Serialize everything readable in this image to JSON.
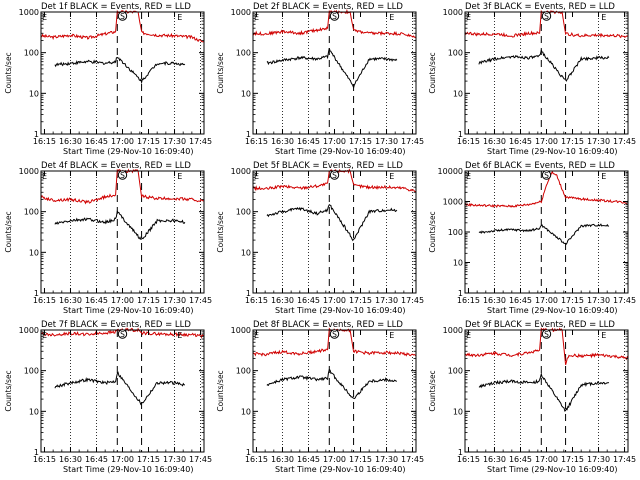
{
  "figure": {
    "common": {
      "xtick_labels": [
        "16:15",
        "16:30",
        "16:45",
        "17:00",
        "17:15",
        "17:30",
        "17:45"
      ],
      "ytick_labels": [
        "1",
        "10",
        "100",
        "1000"
      ],
      "ylabel": "Counts/sec",
      "xlabel": "Start Time (29-Nov-10 16:09:40)",
      "marker_labels": [
        "E",
        "S",
        "E"
      ]
    }
  },
  "chart_data": [
    {
      "type": "line",
      "title": "Det 1f BLACK = Events, RED = LLD",
      "xlabel": "Start Time (29-Nov-10 16:09:40)",
      "ylabel": "Counts/sec",
      "ylim": [
        1,
        1000
      ],
      "xlim": [
        "16:13",
        "17:47"
      ],
      "yscale": "log",
      "grid": "dotted vertical at 16:30, 16:45, 17:30, 17:45",
      "markers": [
        {
          "label": "E",
          "x": "16:13"
        },
        {
          "label": "S",
          "x": "17:00"
        },
        {
          "label": "E",
          "x": "17:31"
        }
      ],
      "dashed_lines": [
        "16:57",
        "17:11"
      ],
      "series": [
        {
          "color": "#d00000",
          "x": [
            "16:13",
            "16:20",
            "16:30",
            "16:40",
            "16:50",
            "16:56",
            "16:57",
            "17:09",
            "17:11",
            "17:20",
            "17:30",
            "17:40",
            "17:47"
          ],
          "values": [
            260,
            240,
            270,
            230,
            290,
            330,
            1000,
            1000,
            310,
            270,
            260,
            240,
            180
          ]
        },
        {
          "color": "#000000",
          "x": [
            "16:21",
            "16:30",
            "16:40",
            "16:50",
            "16:56",
            "16:57",
            "17:11",
            "17:20",
            "17:30",
            "17:36"
          ],
          "values": [
            50,
            55,
            60,
            55,
            60,
            80,
            20,
            55,
            55,
            50
          ]
        }
      ]
    },
    {
      "type": "line",
      "title": "Det 2f BLACK = Events, RED = LLD",
      "xlabel": "Start Time (29-Nov-10 16:09:40)",
      "ylabel": "Counts/sec",
      "ylim": [
        1,
        1000
      ],
      "xlim": [
        "16:13",
        "17:47"
      ],
      "yscale": "log",
      "grid": "dotted vertical at 16:30, 16:45, 17:30, 17:45",
      "markers": [
        {
          "label": "E",
          "x": "16:13"
        },
        {
          "label": "S",
          "x": "17:00"
        },
        {
          "label": "E",
          "x": "17:31"
        }
      ],
      "dashed_lines": [
        "16:57",
        "17:11"
      ],
      "series": [
        {
          "color": "#d00000",
          "x": [
            "16:13",
            "16:20",
            "16:30",
            "16:40",
            "16:50",
            "16:56",
            "16:57",
            "17:09",
            "17:11",
            "17:20",
            "17:30",
            "17:40",
            "17:47"
          ],
          "values": [
            300,
            290,
            330,
            300,
            360,
            400,
            1000,
            1000,
            350,
            300,
            300,
            290,
            230
          ]
        },
        {
          "color": "#000000",
          "x": [
            "16:21",
            "16:30",
            "16:40",
            "16:50",
            "16:56",
            "16:57",
            "17:11",
            "17:20",
            "17:30",
            "17:36"
          ],
          "values": [
            55,
            65,
            75,
            70,
            80,
            120,
            15,
            70,
            70,
            65
          ]
        }
      ]
    },
    {
      "type": "line",
      "title": "Det 3f BLACK = Events, RED = LLD",
      "xlabel": "Start Time (29-Nov-10 16:09:40)",
      "ylabel": "Counts/sec",
      "ylim": [
        1,
        1000
      ],
      "xlim": [
        "16:13",
        "17:47"
      ],
      "yscale": "log",
      "grid": "dotted vertical at 16:30, 16:45, 17:30, 17:45",
      "markers": [
        {
          "label": "E",
          "x": "16:13"
        },
        {
          "label": "S",
          "x": "17:00"
        },
        {
          "label": "E",
          "x": "17:31"
        }
      ],
      "dashed_lines": [
        "16:57",
        "17:11"
      ],
      "series": [
        {
          "color": "#d00000",
          "x": [
            "16:13",
            "16:20",
            "16:30",
            "16:40",
            "16:50",
            "16:56",
            "16:57",
            "17:09",
            "17:11",
            "17:20",
            "17:30",
            "17:40",
            "17:47"
          ],
          "values": [
            310,
            280,
            290,
            260,
            300,
            300,
            1000,
            1000,
            290,
            260,
            270,
            260,
            250
          ]
        },
        {
          "color": "#000000",
          "x": [
            "16:21",
            "16:30",
            "16:40",
            "16:50",
            "16:56",
            "16:57",
            "17:11",
            "17:20",
            "17:30",
            "17:36"
          ],
          "values": [
            55,
            70,
            80,
            75,
            80,
            110,
            20,
            70,
            75,
            75
          ]
        }
      ]
    },
    {
      "type": "line",
      "title": "Det 4f BLACK = Events, RED = LLD",
      "xlabel": "Start Time (29-Nov-10 16:09:40)",
      "ylabel": "Counts/sec",
      "ylim": [
        1,
        1000
      ],
      "xlim": [
        "16:13",
        "17:47"
      ],
      "yscale": "log",
      "grid": "dotted vertical at 16:30, 16:45, 17:30, 17:45",
      "markers": [
        {
          "label": "E",
          "x": "16:13"
        },
        {
          "label": "S",
          "x": "17:00"
        },
        {
          "label": "E",
          "x": "17:31"
        }
      ],
      "dashed_lines": [
        "16:57",
        "17:11"
      ],
      "series": [
        {
          "color": "#d00000",
          "x": [
            "16:13",
            "16:20",
            "16:30",
            "16:40",
            "16:50",
            "16:56",
            "16:57",
            "17:09",
            "17:11",
            "17:20",
            "17:30",
            "17:40",
            "17:47"
          ],
          "values": [
            230,
            190,
            200,
            170,
            230,
            260,
            1000,
            1000,
            240,
            210,
            210,
            200,
            180
          ]
        },
        {
          "color": "#000000",
          "x": [
            "16:21",
            "16:30",
            "16:40",
            "16:50",
            "16:56",
            "16:57",
            "17:11",
            "17:20",
            "17:30",
            "17:36"
          ],
          "values": [
            50,
            60,
            65,
            55,
            65,
            100,
            20,
            60,
            60,
            55
          ]
        }
      ]
    },
    {
      "type": "line",
      "title": "Det 5f BLACK = Events, RED = LLD",
      "xlabel": "Start Time (29-Nov-10 16:09:40)",
      "ylabel": "Counts/sec",
      "ylim": [
        1,
        1000
      ],
      "xlim": [
        "16:13",
        "17:47"
      ],
      "yscale": "log",
      "grid": "dotted vertical at 16:30, 16:45, 17:30, 17:45",
      "markers": [
        {
          "label": "E",
          "x": "16:13"
        },
        {
          "label": "S",
          "x": "17:00"
        },
        {
          "label": "E",
          "x": "17:31"
        }
      ],
      "dashed_lines": [
        "16:57",
        "17:11"
      ],
      "series": [
        {
          "color": "#d00000",
          "x": [
            "16:13",
            "16:20",
            "16:30",
            "16:40",
            "16:50",
            "16:56",
            "16:57",
            "17:09",
            "17:11",
            "17:20",
            "17:30",
            "17:40",
            "17:47"
          ],
          "values": [
            380,
            360,
            420,
            380,
            430,
            480,
            1000,
            1000,
            440,
            400,
            400,
            380,
            320
          ]
        },
        {
          "color": "#000000",
          "x": [
            "16:21",
            "16:30",
            "16:40",
            "16:50",
            "16:56",
            "16:57",
            "17:11",
            "17:20",
            "17:30",
            "17:36"
          ],
          "values": [
            80,
            100,
            120,
            90,
            110,
            150,
            20,
            100,
            110,
            110
          ]
        }
      ]
    },
    {
      "type": "line",
      "title": "Det 6f BLACK = Events, RED = LLD",
      "xlabel": "Start Time (29-Nov-10 16:09:40)",
      "ylabel": "Counts/sec",
      "ylim": [
        1,
        10000
      ],
      "xlim": [
        "16:13",
        "17:47"
      ],
      "yscale": "log",
      "grid": "dotted vertical at 16:30, 16:45, 17:30, 17:45",
      "markers": [
        {
          "label": "E",
          "x": "16:13"
        },
        {
          "label": "S",
          "x": "17:00"
        },
        {
          "label": "E",
          "x": "17:31"
        }
      ],
      "dashed_lines": [
        "16:57",
        "17:11"
      ],
      "series": [
        {
          "color": "#d00000",
          "x": [
            "16:13",
            "16:20",
            "16:30",
            "16:40",
            "16:50",
            "16:57",
            "17:00",
            "17:03",
            "17:06",
            "17:09",
            "17:11",
            "17:20",
            "17:30",
            "17:40",
            "17:47"
          ],
          "values": [
            800,
            750,
            720,
            700,
            800,
            1000,
            3500,
            9000,
            7000,
            2500,
            1400,
            1200,
            1100,
            1000,
            900
          ]
        },
        {
          "color": "#000000",
          "x": [
            "16:21",
            "16:30",
            "16:40",
            "16:50",
            "16:56",
            "16:57",
            "17:11",
            "17:20",
            "17:30",
            "17:36"
          ],
          "values": [
            95,
            110,
            120,
            110,
            130,
            170,
            40,
            160,
            170,
            160
          ]
        }
      ]
    },
    {
      "type": "line",
      "title": "Det 7f BLACK = Events, RED = LLD",
      "xlabel": "Start Time (29-Nov-10 16:09:40)",
      "ylabel": "Counts/sec",
      "ylim": [
        1,
        1000
      ],
      "xlim": [
        "16:13",
        "17:47"
      ],
      "yscale": "log",
      "grid": "dotted vertical at 16:30, 16:45, 17:30, 17:45",
      "markers": [
        {
          "label": "E",
          "x": "16:13"
        },
        {
          "label": "S",
          "x": "17:00"
        },
        {
          "label": "E",
          "x": "17:31"
        }
      ],
      "dashed_lines": [
        "16:57",
        "17:11"
      ],
      "series": [
        {
          "color": "#d00000",
          "x": [
            "16:13",
            "16:20",
            "16:30",
            "16:40",
            "16:50",
            "16:56",
            "16:57",
            "17:09",
            "17:11",
            "17:20",
            "17:30",
            "17:40",
            "17:47"
          ],
          "values": [
            800,
            760,
            820,
            780,
            850,
            900,
            1000,
            1000,
            850,
            800,
            780,
            760,
            700
          ]
        },
        {
          "color": "#000000",
          "x": [
            "16:21",
            "16:30",
            "16:40",
            "16:50",
            "16:56",
            "16:57",
            "17:11",
            "17:20",
            "17:30",
            "17:36"
          ],
          "values": [
            40,
            50,
            60,
            50,
            55,
            90,
            15,
            50,
            50,
            45
          ]
        }
      ]
    },
    {
      "type": "line",
      "title": "Det 8f BLACK = Events, RED = LLD",
      "xlabel": "Start Time (29-Nov-10 16:09:40)",
      "ylabel": "Counts/sec",
      "ylim": [
        1,
        1000
      ],
      "xlim": [
        "16:13",
        "17:47"
      ],
      "yscale": "log",
      "grid": "dotted vertical at 16:30, 16:45, 17:30, 17:45",
      "markers": [
        {
          "label": "E",
          "x": "16:13"
        },
        {
          "label": "S",
          "x": "17:00"
        },
        {
          "label": "E",
          "x": "17:31"
        }
      ],
      "dashed_lines": [
        "16:57",
        "17:11"
      ],
      "series": [
        {
          "color": "#d00000",
          "x": [
            "16:13",
            "16:20",
            "16:30",
            "16:40",
            "16:50",
            "16:56",
            "16:57",
            "17:09",
            "17:11",
            "17:20",
            "17:30",
            "17:40",
            "17:47"
          ],
          "values": [
            260,
            250,
            290,
            260,
            300,
            330,
            1000,
            1000,
            300,
            270,
            280,
            260,
            230
          ]
        },
        {
          "color": "#000000",
          "x": [
            "16:21",
            "16:30",
            "16:40",
            "16:50",
            "16:56",
            "16:57",
            "17:11",
            "17:20",
            "17:30",
            "17:36"
          ],
          "values": [
            45,
            60,
            70,
            60,
            65,
            100,
            20,
            55,
            60,
            55
          ]
        }
      ]
    },
    {
      "type": "line",
      "title": "Det 9f BLACK = Events, RED = LLD",
      "xlabel": "Start Time (29-Nov-10 16:09:40)",
      "ylabel": "Counts/sec",
      "ylim": [
        1,
        1000
      ],
      "xlim": [
        "16:13",
        "17:47"
      ],
      "yscale": "log",
      "grid": "dotted vertical at 16:30, 16:45, 17:30, 17:45",
      "markers": [
        {
          "label": "E",
          "x": "16:13"
        },
        {
          "label": "S",
          "x": "17:00"
        },
        {
          "label": "E",
          "x": "17:31"
        }
      ],
      "dashed_lines": [
        "16:57",
        "17:11"
      ],
      "series": [
        {
          "color": "#d00000",
          "x": [
            "16:13",
            "16:20",
            "16:30",
            "16:40",
            "16:50",
            "16:56",
            "16:57",
            "17:09",
            "17:11",
            "17:13",
            "17:20",
            "17:30",
            "17:40",
            "17:47"
          ],
          "values": [
            250,
            240,
            270,
            240,
            280,
            320,
            1000,
            1000,
            150,
            240,
            230,
            240,
            220,
            200
          ]
        },
        {
          "color": "#000000",
          "x": [
            "16:21",
            "16:30",
            "16:40",
            "16:50",
            "16:56",
            "16:57",
            "17:11",
            "17:20",
            "17:30",
            "17:36"
          ],
          "values": [
            40,
            50,
            55,
            50,
            55,
            80,
            10,
            45,
            50,
            50
          ]
        }
      ]
    }
  ]
}
